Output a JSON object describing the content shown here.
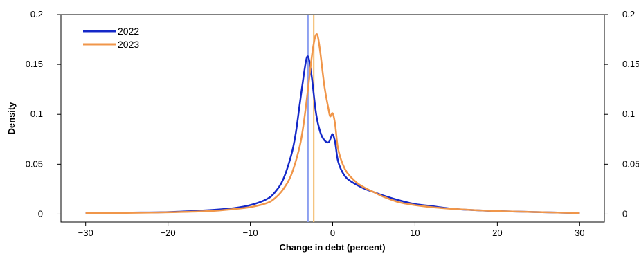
{
  "chart_data": {
    "type": "line",
    "title": "",
    "xlabel": "Change in debt (percent)",
    "ylabel": "Density",
    "xlim": [
      -33,
      33
    ],
    "ylim": [
      -0.008,
      0.2
    ],
    "x_ticks": [
      -30,
      -20,
      -10,
      0,
      10,
      20,
      30
    ],
    "x_tick_labels": [
      "−30",
      "−20",
      "−10",
      "0",
      "10",
      "20",
      "30"
    ],
    "y_ticks": [
      0,
      0.05,
      0.1,
      0.15,
      0.2
    ],
    "y_tick_labels": [
      "0",
      "0.05",
      "0.1",
      "0.15",
      "0.2"
    ],
    "right_y_tick_labels": [
      "0",
      "0.05",
      "0.1",
      "0.15",
      "0.2"
    ],
    "grid": false,
    "legend_position": "top-left",
    "series": [
      {
        "name": "2022",
        "color": "#1428c8",
        "x": [
          -30,
          -25,
          -20,
          -15,
          -12,
          -10,
          -8,
          -7,
          -6,
          -5,
          -4.5,
          -4,
          -3.5,
          -3.2,
          -3,
          -2.8,
          -2.5,
          -2,
          -1.5,
          -1,
          -0.5,
          -0.2,
          0,
          0.3,
          0.6,
          1,
          1.5,
          2,
          3,
          4,
          5,
          6,
          8,
          10,
          12,
          15,
          20,
          25,
          30
        ],
        "values": [
          0.001,
          0.0015,
          0.002,
          0.004,
          0.006,
          0.009,
          0.015,
          0.022,
          0.035,
          0.06,
          0.08,
          0.11,
          0.14,
          0.155,
          0.158,
          0.152,
          0.135,
          0.1,
          0.082,
          0.074,
          0.072,
          0.077,
          0.08,
          0.072,
          0.055,
          0.045,
          0.038,
          0.034,
          0.029,
          0.025,
          0.022,
          0.019,
          0.014,
          0.01,
          0.008,
          0.005,
          0.003,
          0.002,
          0.001
        ]
      },
      {
        "name": "2023",
        "color": "#f0964a",
        "x": [
          -30,
          -25,
          -20,
          -15,
          -12,
          -10,
          -8,
          -7,
          -6,
          -5,
          -4,
          -3.5,
          -3,
          -2.5,
          -2.2,
          -2,
          -1.8,
          -1.5,
          -1,
          -0.5,
          -0.3,
          0,
          0.3,
          0.6,
          1,
          1.5,
          2,
          3,
          4,
          5,
          6,
          8,
          10,
          12,
          15,
          20,
          25,
          30
        ],
        "values": [
          0.001,
          0.0012,
          0.0018,
          0.003,
          0.005,
          0.007,
          0.011,
          0.016,
          0.025,
          0.04,
          0.068,
          0.092,
          0.125,
          0.16,
          0.175,
          0.18,
          0.178,
          0.162,
          0.128,
          0.105,
          0.098,
          0.101,
          0.09,
          0.068,
          0.055,
          0.045,
          0.039,
          0.031,
          0.026,
          0.022,
          0.018,
          0.012,
          0.009,
          0.007,
          0.005,
          0.003,
          0.002,
          0.001
        ]
      }
    ],
    "vertical_lines": [
      {
        "x": -3,
        "color": "#8da0f0"
      },
      {
        "x": -2.3,
        "color": "#f5c27a"
      }
    ]
  }
}
